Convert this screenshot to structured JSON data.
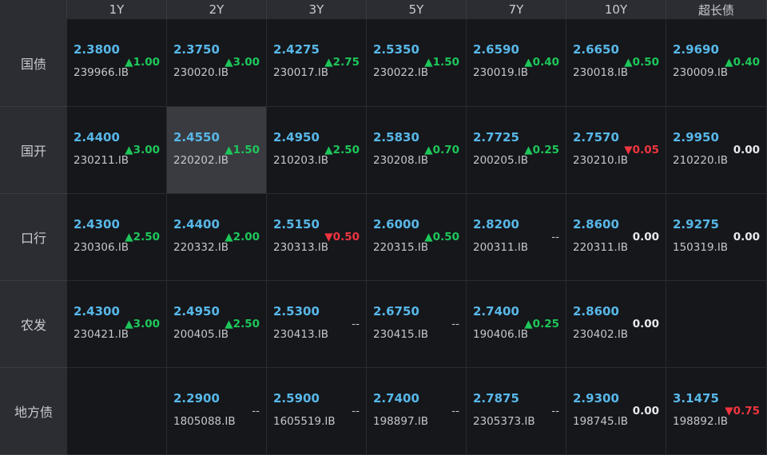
{
  "columns": [
    "1Y",
    "2Y",
    "3Y",
    "5Y",
    "7Y",
    "10Y",
    "超长债"
  ],
  "rows": [
    {
      "label": "国债",
      "cells": [
        {
          "yield": "2.3800",
          "code": "239966.IB",
          "change": "▲1.00",
          "dir": "up"
        },
        {
          "yield": "2.3750",
          "code": "230020.IB",
          "change": "▲3.00",
          "dir": "up"
        },
        {
          "yield": "2.4275",
          "code": "230017.IB",
          "change": "▲2.75",
          "dir": "up"
        },
        {
          "yield": "2.5350",
          "code": "230022.IB",
          "change": "▲1.50",
          "dir": "up"
        },
        {
          "yield": "2.6590",
          "code": "230019.IB",
          "change": "▲0.40",
          "dir": "up"
        },
        {
          "yield": "2.6650",
          "code": "230018.IB",
          "change": "▲0.50",
          "dir": "up"
        },
        {
          "yield": "2.9690",
          "code": "230009.IB",
          "change": "▲0.40",
          "dir": "up"
        }
      ]
    },
    {
      "label": "国开",
      "cells": [
        {
          "yield": "2.4400",
          "code": "230211.IB",
          "change": "▲3.00",
          "dir": "up"
        },
        {
          "yield": "2.4550",
          "code": "220202.IB",
          "change": "▲1.50",
          "dir": "up",
          "selected": true
        },
        {
          "yield": "2.4950",
          "code": "210203.IB",
          "change": "▲2.50",
          "dir": "up"
        },
        {
          "yield": "2.5830",
          "code": "230208.IB",
          "change": "▲0.70",
          "dir": "up"
        },
        {
          "yield": "2.7725",
          "code": "200205.IB",
          "change": "▲0.25",
          "dir": "up"
        },
        {
          "yield": "2.7570",
          "code": "230210.IB",
          "change": "▼0.05",
          "dir": "down"
        },
        {
          "yield": "2.9950",
          "code": "210220.IB",
          "change": "0.00",
          "dir": "flat"
        }
      ]
    },
    {
      "label": "口行",
      "cells": [
        {
          "yield": "2.4300",
          "code": "230306.IB",
          "change": "▲2.50",
          "dir": "up"
        },
        {
          "yield": "2.4400",
          "code": "220332.IB",
          "change": "▲2.00",
          "dir": "up"
        },
        {
          "yield": "2.5150",
          "code": "230313.IB",
          "change": "▼0.50",
          "dir": "down"
        },
        {
          "yield": "2.6000",
          "code": "220315.IB",
          "change": "▲0.50",
          "dir": "up"
        },
        {
          "yield": "2.8200",
          "code": "200311.IB",
          "change": "--",
          "dir": "none"
        },
        {
          "yield": "2.8600",
          "code": "220311.IB",
          "change": "0.00",
          "dir": "flat"
        },
        {
          "yield": "2.9275",
          "code": "150319.IB",
          "change": "0.00",
          "dir": "flat"
        }
      ]
    },
    {
      "label": "农发",
      "cells": [
        {
          "yield": "2.4300",
          "code": "230421.IB",
          "change": "▲3.00",
          "dir": "up"
        },
        {
          "yield": "2.4950",
          "code": "200405.IB",
          "change": "▲2.50",
          "dir": "up"
        },
        {
          "yield": "2.5300",
          "code": "230413.IB",
          "change": "--",
          "dir": "none"
        },
        {
          "yield": "2.6750",
          "code": "230415.IB",
          "change": "--",
          "dir": "none"
        },
        {
          "yield": "2.7400",
          "code": "190406.IB",
          "change": "▲0.25",
          "dir": "up"
        },
        {
          "yield": "2.8600",
          "code": "230402.IB",
          "change": "0.00",
          "dir": "flat"
        },
        null
      ]
    },
    {
      "label": "地方债",
      "cells": [
        null,
        {
          "yield": "2.2900",
          "code": "1805088.IB",
          "change": "--",
          "dir": "none"
        },
        {
          "yield": "2.5900",
          "code": "1605519.IB",
          "change": "--",
          "dir": "none"
        },
        {
          "yield": "2.7400",
          "code": "198897.IB",
          "change": "--",
          "dir": "none"
        },
        {
          "yield": "2.7875",
          "code": "2305373.IB",
          "change": "--",
          "dir": "none"
        },
        {
          "yield": "2.9300",
          "code": "198745.IB",
          "change": "0.00",
          "dir": "flat"
        },
        {
          "yield": "3.1475",
          "code": "198892.IB",
          "change": "▼0.75",
          "dir": "down"
        }
      ]
    }
  ]
}
